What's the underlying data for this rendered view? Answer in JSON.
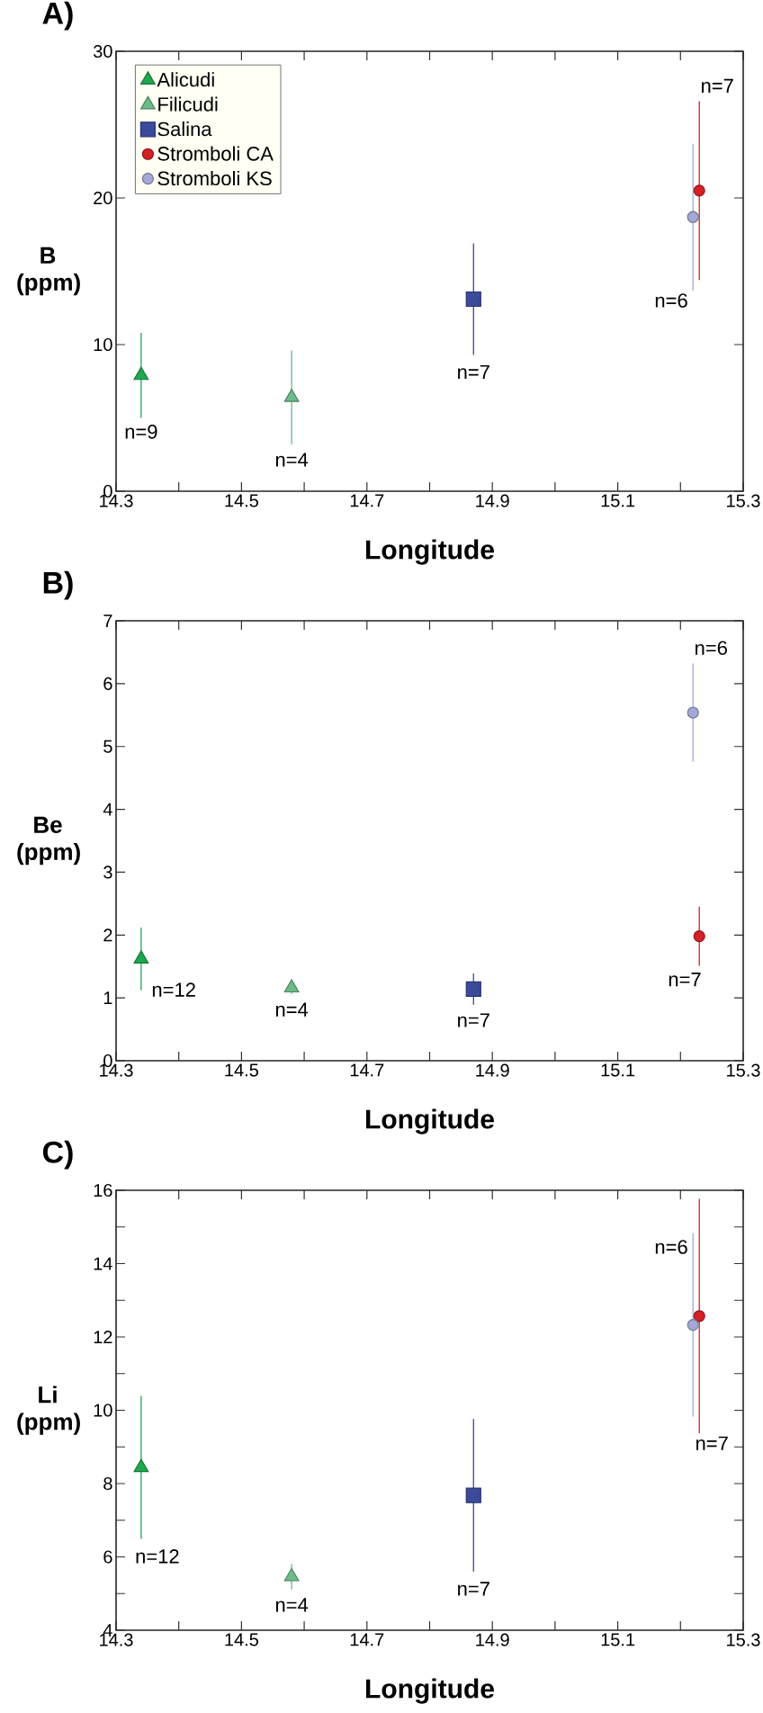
{
  "chart_data": [
    {
      "type": "scatter",
      "title": "A)",
      "xlabel": "Longitude",
      "ylabel": "B (ppm)",
      "xlim": [
        14.3,
        15.3
      ],
      "ylim": [
        0,
        30
      ],
      "xticks": [
        14.3,
        {
          "value": 14.4,
          "label": null
        },
        14.5,
        {
          "value": 14.6,
          "label": null
        },
        14.7,
        {
          "value": 14.8,
          "label": null
        },
        14.9,
        {
          "value": 15.0,
          "label": null
        },
        15.1,
        {
          "value": 15.2,
          "label": null
        },
        15.3
      ],
      "yticks": [
        0,
        10,
        20,
        30
      ],
      "legend": "top left",
      "series": [
        {
          "name": "Alicudi",
          "color": "#1fa84f",
          "marker": "triangle",
          "x": [
            14.34
          ],
          "values": [
            7.9
          ],
          "errors": [
            2.9
          ]
        },
        {
          "name": "Filicudi",
          "color": "#6dbb8a",
          "marker": "triangle",
          "x": [
            14.58
          ],
          "values": [
            6.4
          ],
          "errors": [
            3.2
          ]
        },
        {
          "name": "Salina",
          "color": "#3b4a9a",
          "marker": "square",
          "x": [
            14.87
          ],
          "values": [
            13.1
          ],
          "errors": [
            3.8
          ]
        },
        {
          "name": "Stromboli CA",
          "color": "#d42027",
          "marker": "circle",
          "x": [
            15.23
          ],
          "values": [
            20.5
          ],
          "errors": [
            6.1
          ]
        },
        {
          "name": "Stromboli KS",
          "color": "#a3a8d4",
          "marker": "circle",
          "x": [
            15.22
          ],
          "values": [
            18.7
          ],
          "errors": [
            5.0
          ]
        }
      ],
      "annotations": [
        "n=9",
        "n=4",
        "n=7",
        "n=7",
        "n=6"
      ]
    },
    {
      "type": "scatter",
      "title": "B)",
      "xlabel": "Longitude",
      "ylabel": "Be (ppm)",
      "xlim": [
        14.3,
        15.3
      ],
      "ylim": [
        0,
        7
      ],
      "xticks": [
        14.3,
        {
          "value": 14.4,
          "label": null
        },
        14.5,
        {
          "value": 14.6,
          "label": null
        },
        14.7,
        {
          "value": 14.8,
          "label": null
        },
        14.9,
        {
          "value": 15.0,
          "label": null
        },
        15.1,
        {
          "value": 15.2,
          "label": null
        },
        15.3
      ],
      "yticks": [
        0,
        1,
        2,
        3,
        4,
        5,
        6,
        7
      ],
      "series": [
        {
          "color": "#1fa84f",
          "marker": "triangle",
          "x": [
            14.34
          ],
          "values": [
            1.62
          ],
          "errors": [
            0.5
          ]
        },
        {
          "color": "#6dbb8a",
          "marker": "triangle",
          "x": [
            14.58
          ],
          "values": [
            1.16
          ],
          "errors": [
            0.1
          ]
        },
        {
          "color": "#3b4a9a",
          "marker": "square",
          "x": [
            14.87
          ],
          "values": [
            1.14
          ],
          "errors": [
            0.25
          ]
        },
        {
          "color": "#d42027",
          "marker": "circle",
          "x": [
            15.23
          ],
          "values": [
            1.98
          ],
          "errors": [
            0.47
          ]
        },
        {
          "color": "#a3a8d4",
          "marker": "circle",
          "x": [
            15.22
          ],
          "values": [
            5.54
          ],
          "errors": [
            0.78
          ]
        }
      ],
      "annotations": [
        "n=12",
        "n=4",
        "n=7",
        "n=7",
        "n=6"
      ]
    },
    {
      "type": "scatter",
      "title": "C)",
      "xlabel": "Longitude",
      "ylabel": "Li (ppm)",
      "xlim": [
        14.3,
        15.3
      ],
      "ylim": [
        4,
        16
      ],
      "xticks": [
        14.3,
        {
          "value": 14.4,
          "label": null
        },
        14.5,
        {
          "value": 14.6,
          "label": null
        },
        14.7,
        {
          "value": 14.8,
          "label": null
        },
        14.9,
        {
          "value": 15.0,
          "label": null
        },
        15.1,
        {
          "value": 15.2,
          "label": null
        },
        15.3
      ],
      "yticks": [
        4,
        {
          "value": 5,
          "label": null
        },
        6,
        {
          "value": 7,
          "label": null
        },
        8,
        {
          "value": 9,
          "label": null
        },
        10,
        {
          "value": 11,
          "label": null
        },
        12,
        {
          "value": 13,
          "label": null
        },
        14,
        {
          "value": 15,
          "label": null
        },
        16
      ],
      "series": [
        {
          "color": "#1fa84f",
          "marker": "triangle",
          "x": [
            14.34
          ],
          "values": [
            8.44
          ],
          "errors": [
            1.95
          ]
        },
        {
          "color": "#6dbb8a",
          "marker": "triangle",
          "x": [
            14.58
          ],
          "values": [
            5.46
          ],
          "errors": [
            0.35
          ]
        },
        {
          "color": "#3b4a9a",
          "marker": "square",
          "x": [
            14.87
          ],
          "values": [
            7.68
          ],
          "errors": [
            2.08
          ]
        },
        {
          "color": "#d42027",
          "marker": "circle",
          "x": [
            15.23
          ],
          "values": [
            12.57
          ],
          "errors": [
            3.2
          ]
        },
        {
          "color": "#a3a8d4",
          "marker": "circle",
          "x": [
            15.22
          ],
          "values": [
            12.33
          ],
          "errors": [
            2.5
          ]
        }
      ],
      "annotations": [
        "n=12",
        "n=4",
        "n=7",
        "n=7",
        "n=6"
      ]
    }
  ]
}
